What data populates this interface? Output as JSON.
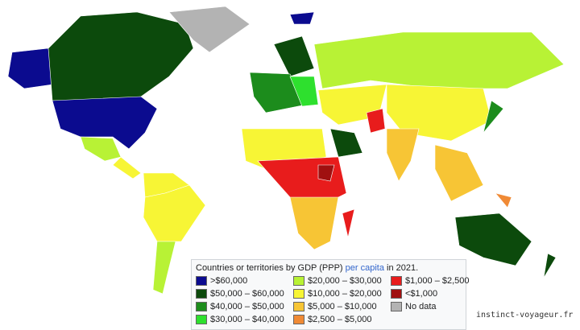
{
  "legend": {
    "title_before": "Countries or territories by GDP (PPP)",
    "title_link": "per capita",
    "title_after": "in 2021.",
    "items": [
      {
        "label": ">$60,000",
        "color": "#0b0b8f"
      },
      {
        "label": "$50,000 – $60,000",
        "color": "#0c4a0c"
      },
      {
        "label": "$40,000 – $50,000",
        "color": "#1c8c1c"
      },
      {
        "label": "$30,000 – $40,000",
        "color": "#2ee02e"
      },
      {
        "label": "$20,000 – $30,000",
        "color": "#b8f235"
      },
      {
        "label": "$10,000 – $20,000",
        "color": "#f7f535"
      },
      {
        "label": "$5,000 – $10,000",
        "color": "#f7c535"
      },
      {
        "label": "$2,500 – $5,000",
        "color": "#f08a35"
      },
      {
        "label": "$1,000 – $2,500",
        "color": "#e81c1c"
      },
      {
        "label": "<$1,000",
        "color": "#a01010"
      },
      {
        "label": "No data",
        "color": "#b3b3b3"
      }
    ]
  },
  "watermark": "instinct-voyageur.fr"
}
